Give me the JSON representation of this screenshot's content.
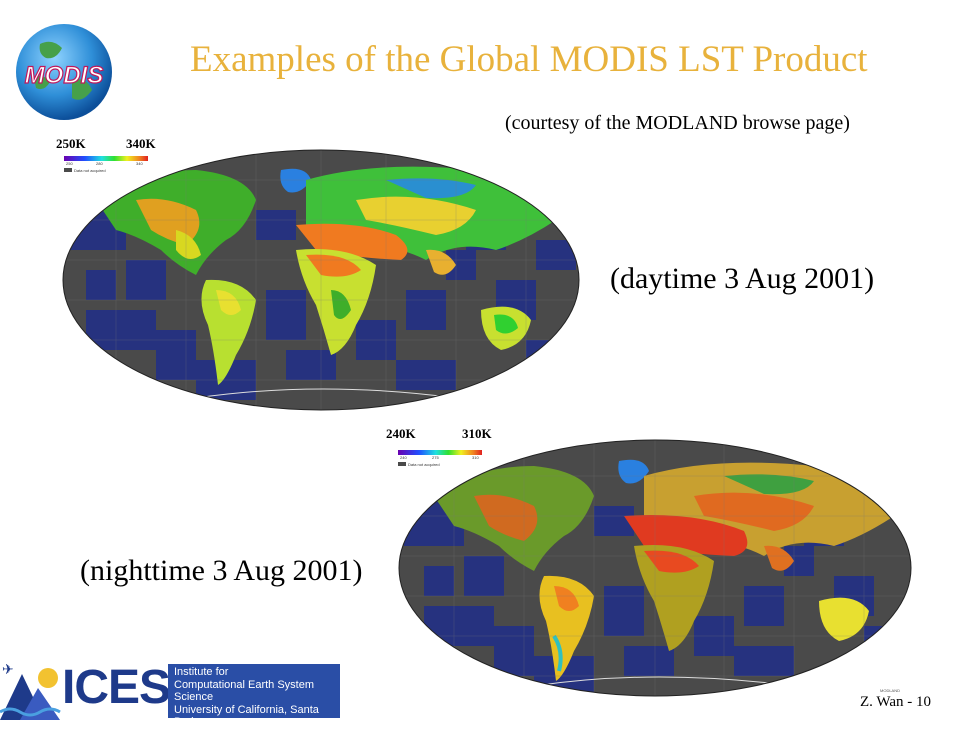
{
  "slide": {
    "title": "Examples of the Global MODIS LST Product",
    "courtesy": "(courtesy of the MODLAND browse page)",
    "logo_text": "MODIS",
    "footer_signature": "Z. Wan - 10",
    "footer_tiny": "MODLAND"
  },
  "maps": [
    {
      "caption": "(daytime 3 Aug 2001)",
      "scale_min": "250K",
      "scale_max": "340K",
      "mini_ticks": [
        "250",
        "280",
        "340"
      ],
      "legend_note": "Data not acquired"
    },
    {
      "caption": "(nighttime 3 Aug 2001)",
      "scale_min": "240K",
      "scale_max": "310K",
      "mini_ticks": [
        "240",
        "275",
        "310"
      ],
      "legend_note": "Data not acquired"
    }
  ],
  "footer": {
    "brand": "ICESS",
    "institute": [
      "Institute for",
      "Computational Earth System Science",
      "University of California, Santa Barbara"
    ]
  },
  "colors": {
    "title": "#e8b23c",
    "ocean_block": "#26327f",
    "no_data": "#4a4a4a",
    "institute_box": "#2a4ea6"
  }
}
